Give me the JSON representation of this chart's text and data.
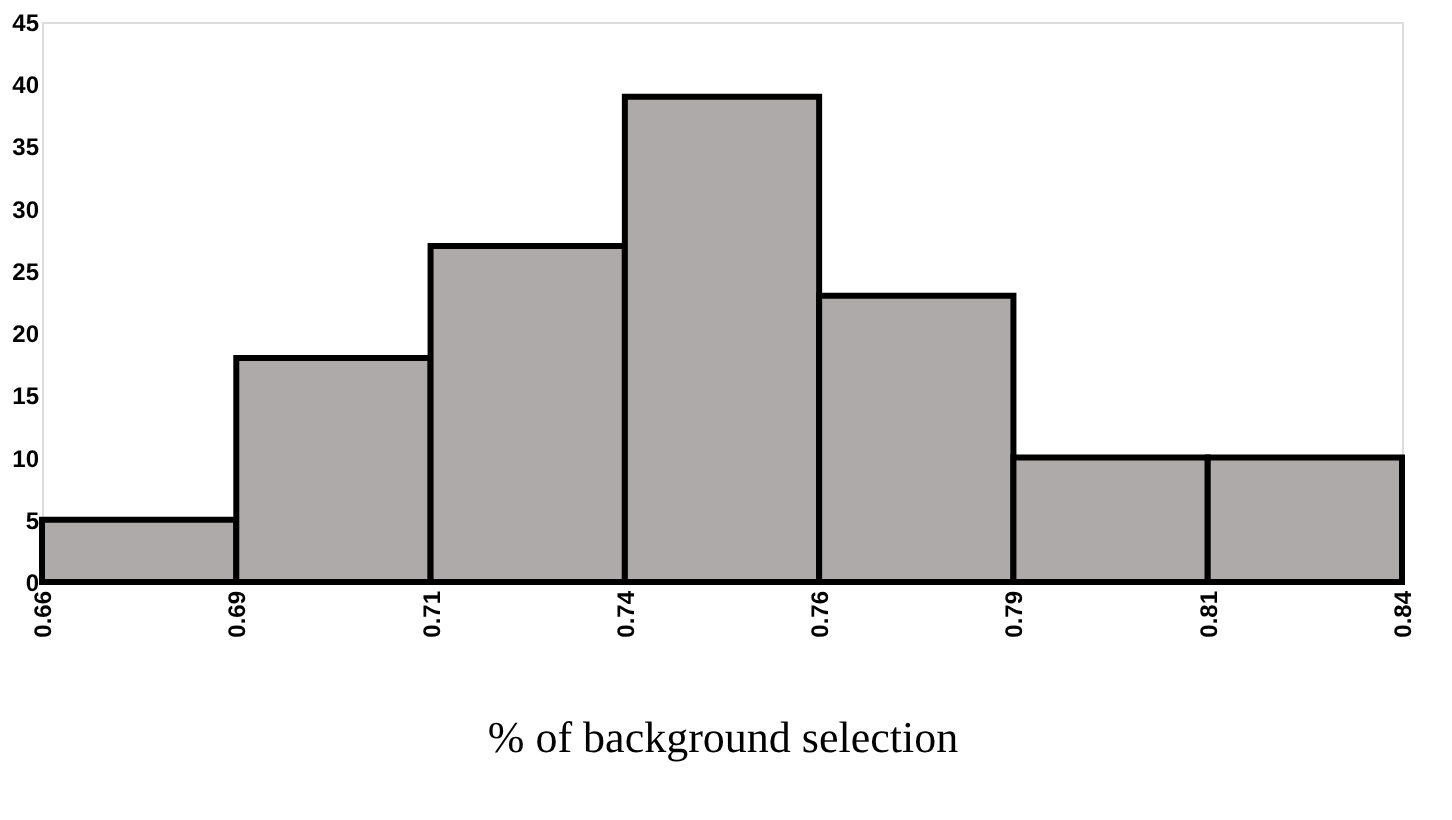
{
  "chart_data": {
    "type": "histogram",
    "xlabel": "% of background selection",
    "bins": [
      0.66,
      0.685,
      0.71,
      0.735,
      0.76,
      0.785,
      0.81,
      0.835
    ],
    "values": [
      5,
      18,
      27,
      39,
      23,
      10,
      10
    ],
    "color": "#aeaaaa",
    "xlim": [
      0.66,
      0.835
    ],
    "xticks": [
      0.66,
      {
        "value": 0.685,
        "label": "0.69"
      },
      0.71,
      {
        "value": 0.735,
        "label": "0.74"
      },
      0.76,
      {
        "value": 0.785,
        "label": "0.79"
      },
      0.81,
      {
        "value": 0.835,
        "label": "0.84"
      }
    ],
    "ylim": [
      0,
      45
    ],
    "yticks": [
      0,
      5,
      10,
      15,
      20,
      25,
      30,
      35,
      40,
      45
    ],
    "grid": false
  }
}
